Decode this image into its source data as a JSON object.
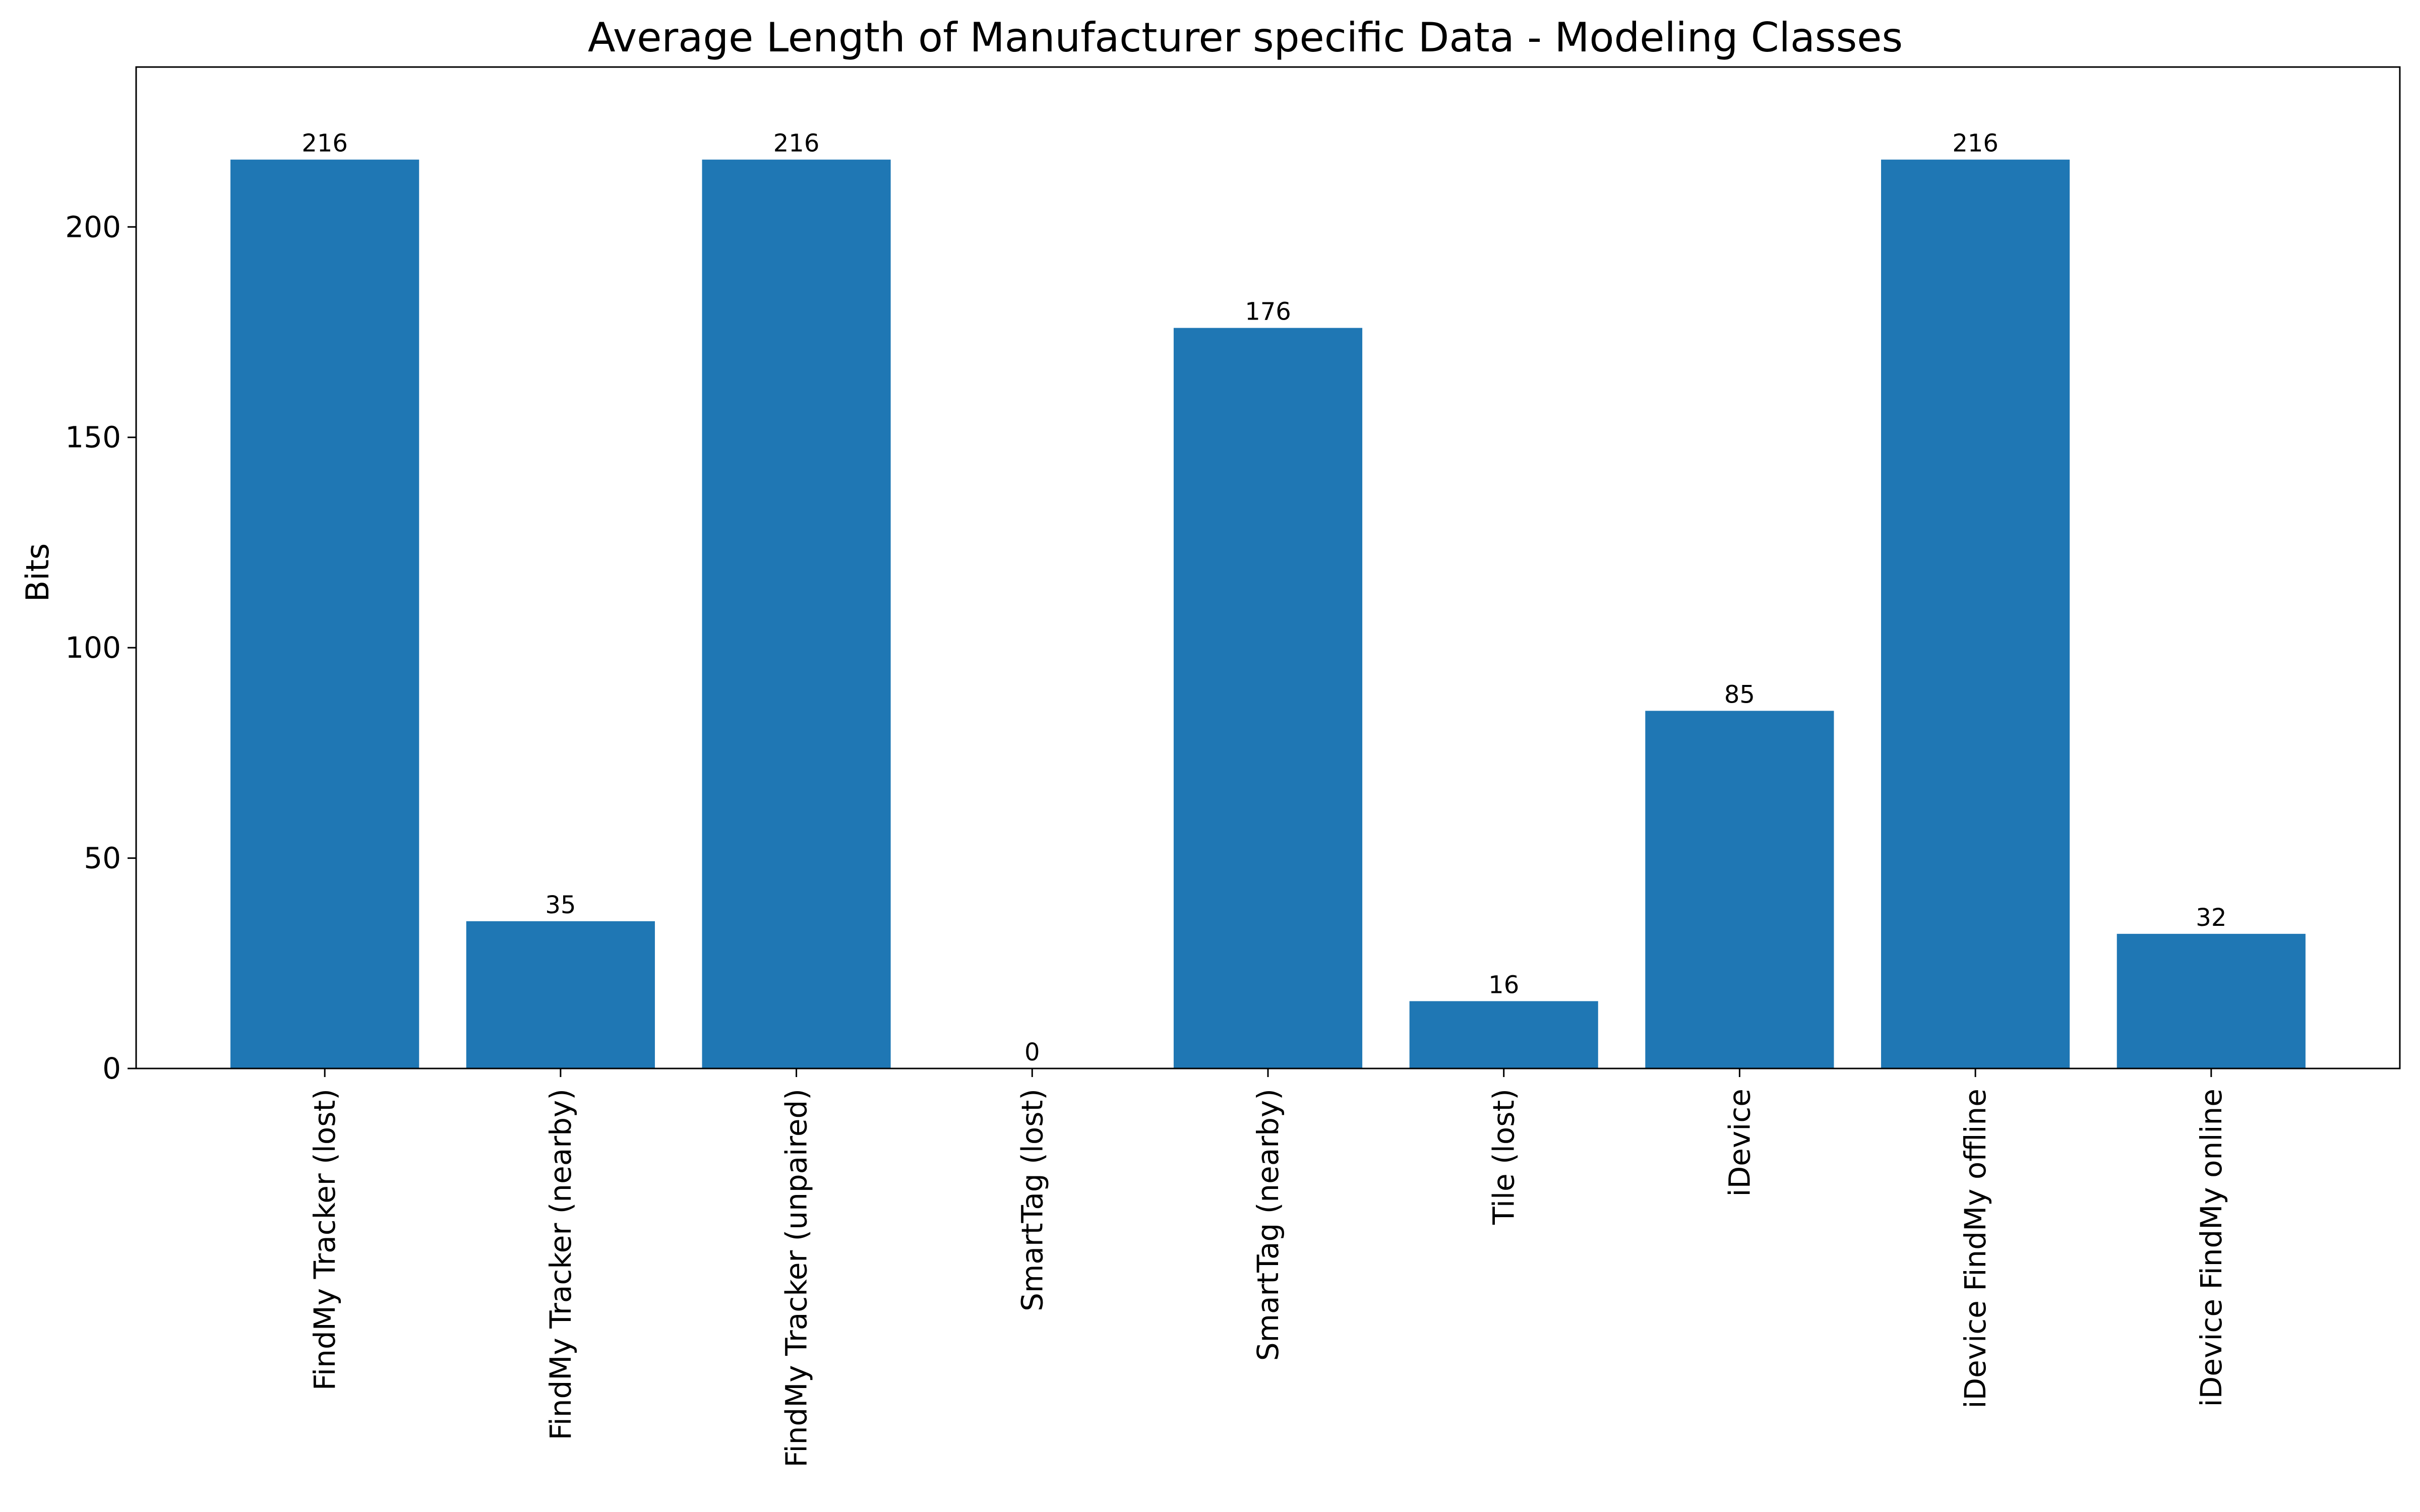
{
  "chart_data": {
    "type": "bar",
    "title": "Average Length of Manufacturer specific Data - Modeling Classes",
    "xlabel": "",
    "ylabel": "Bits",
    "ylim": [
      0,
      238
    ],
    "yticks": [
      0,
      50,
      100,
      150,
      200
    ],
    "grid": false,
    "bar_color": "#1f77b4",
    "categories": [
      "FindMy Tracker (lost)",
      "FindMy Tracker (nearby)",
      "FindMy Tracker (unpaired)",
      "SmartTag (lost)",
      "SmartTag (nearby)",
      "Tile (lost)",
      "iDevice",
      "iDevice FindMy offline",
      "iDevice FindMy online"
    ],
    "values": [
      216,
      35,
      216,
      0,
      176,
      16,
      85,
      216,
      32
    ],
    "data_labels": [
      "216",
      "35",
      "216",
      "0",
      "176",
      "16",
      "85",
      "216",
      "32"
    ]
  }
}
